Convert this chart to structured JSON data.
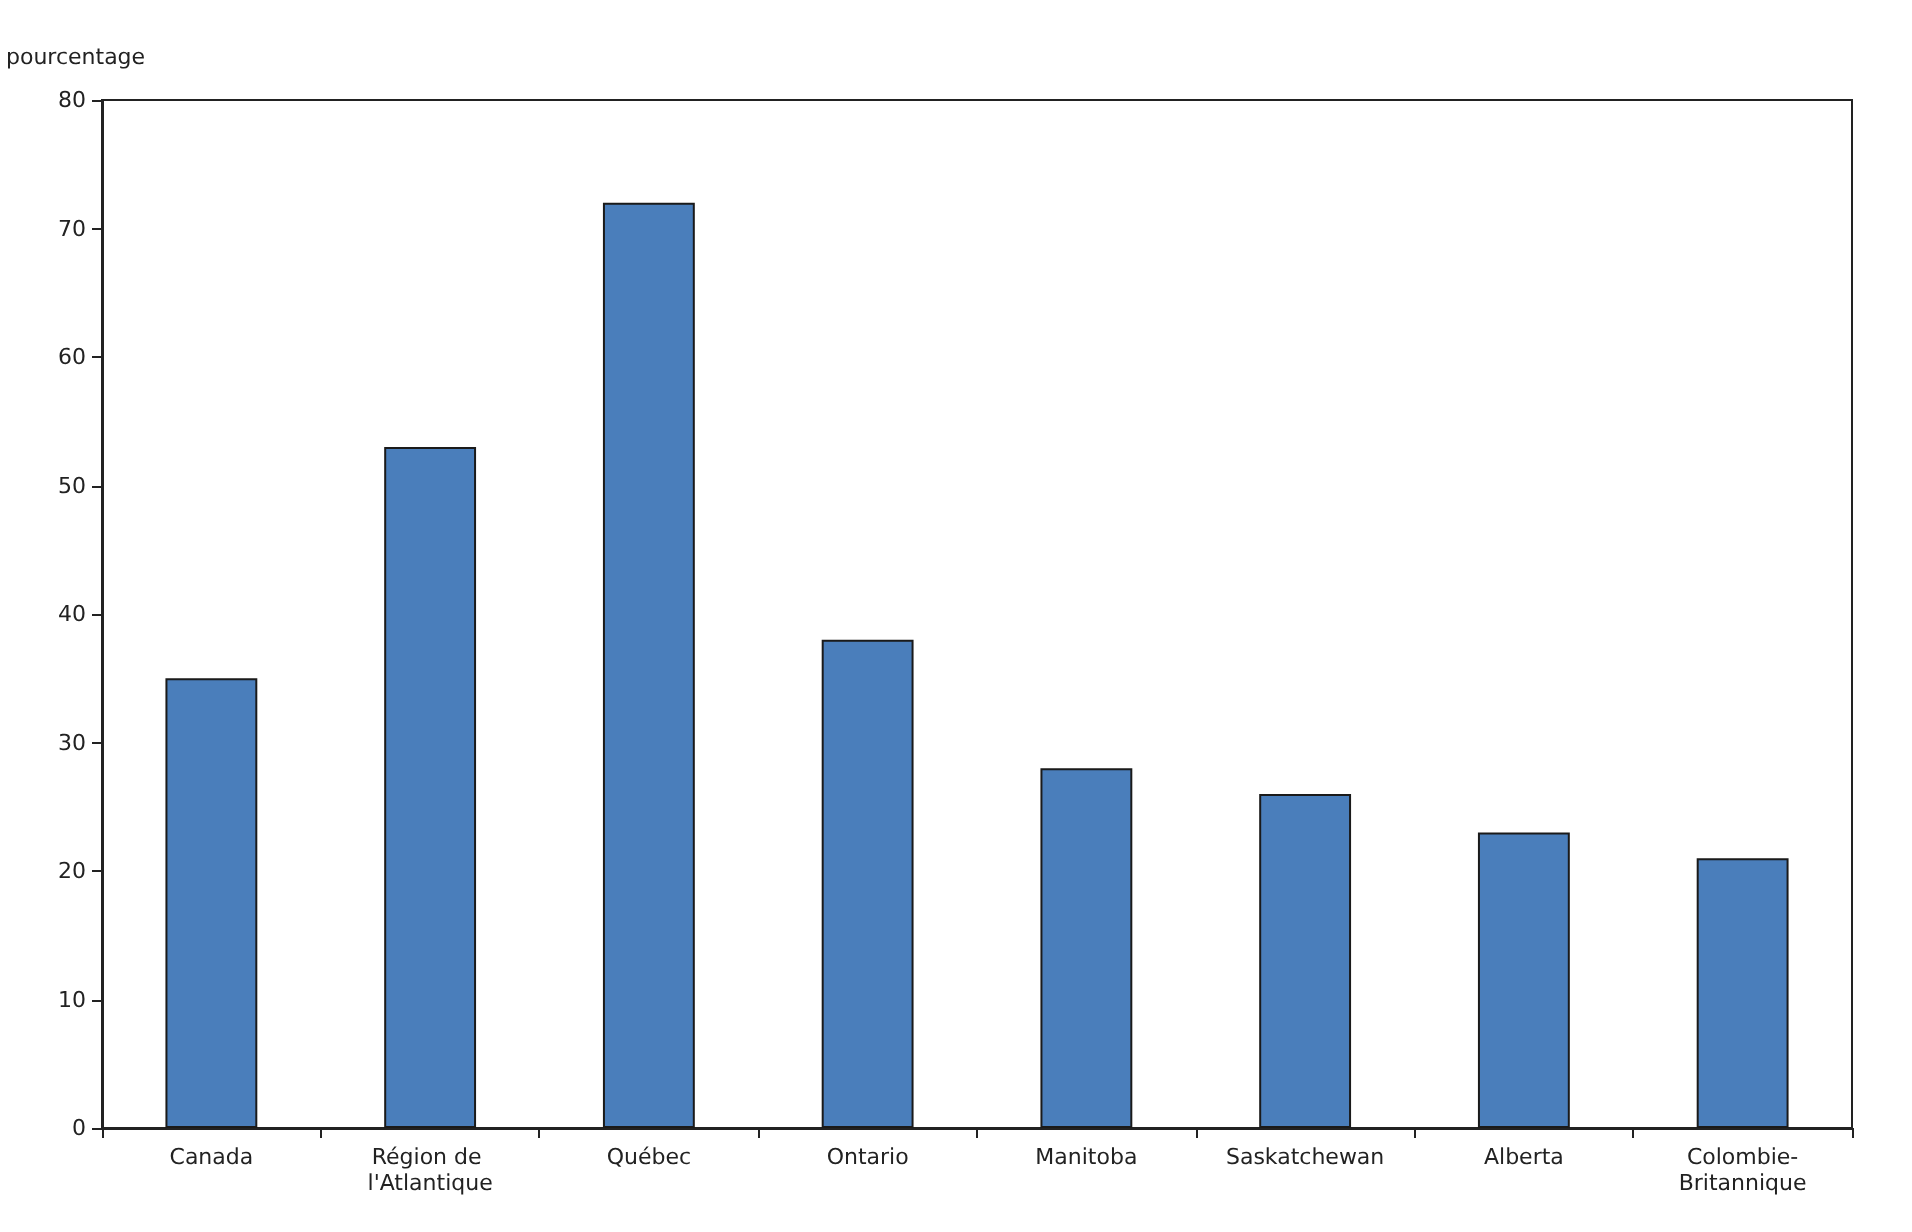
{
  "chart_data": {
    "type": "bar",
    "ylabel": "pourcentage",
    "categories": [
      "Canada",
      "Région de l'Atlantique",
      "Québec",
      "Ontario",
      "Manitoba",
      "Saskatchewan",
      "Alberta",
      "Colombie-Britannique"
    ],
    "values": [
      35,
      53,
      72,
      38,
      28,
      26,
      23,
      21
    ],
    "color": "#4a7ebb",
    "ylim": [
      0,
      80
    ],
    "yticks": [
      0,
      10,
      20,
      30,
      40,
      50,
      60,
      70,
      80
    ],
    "grid": false
  }
}
